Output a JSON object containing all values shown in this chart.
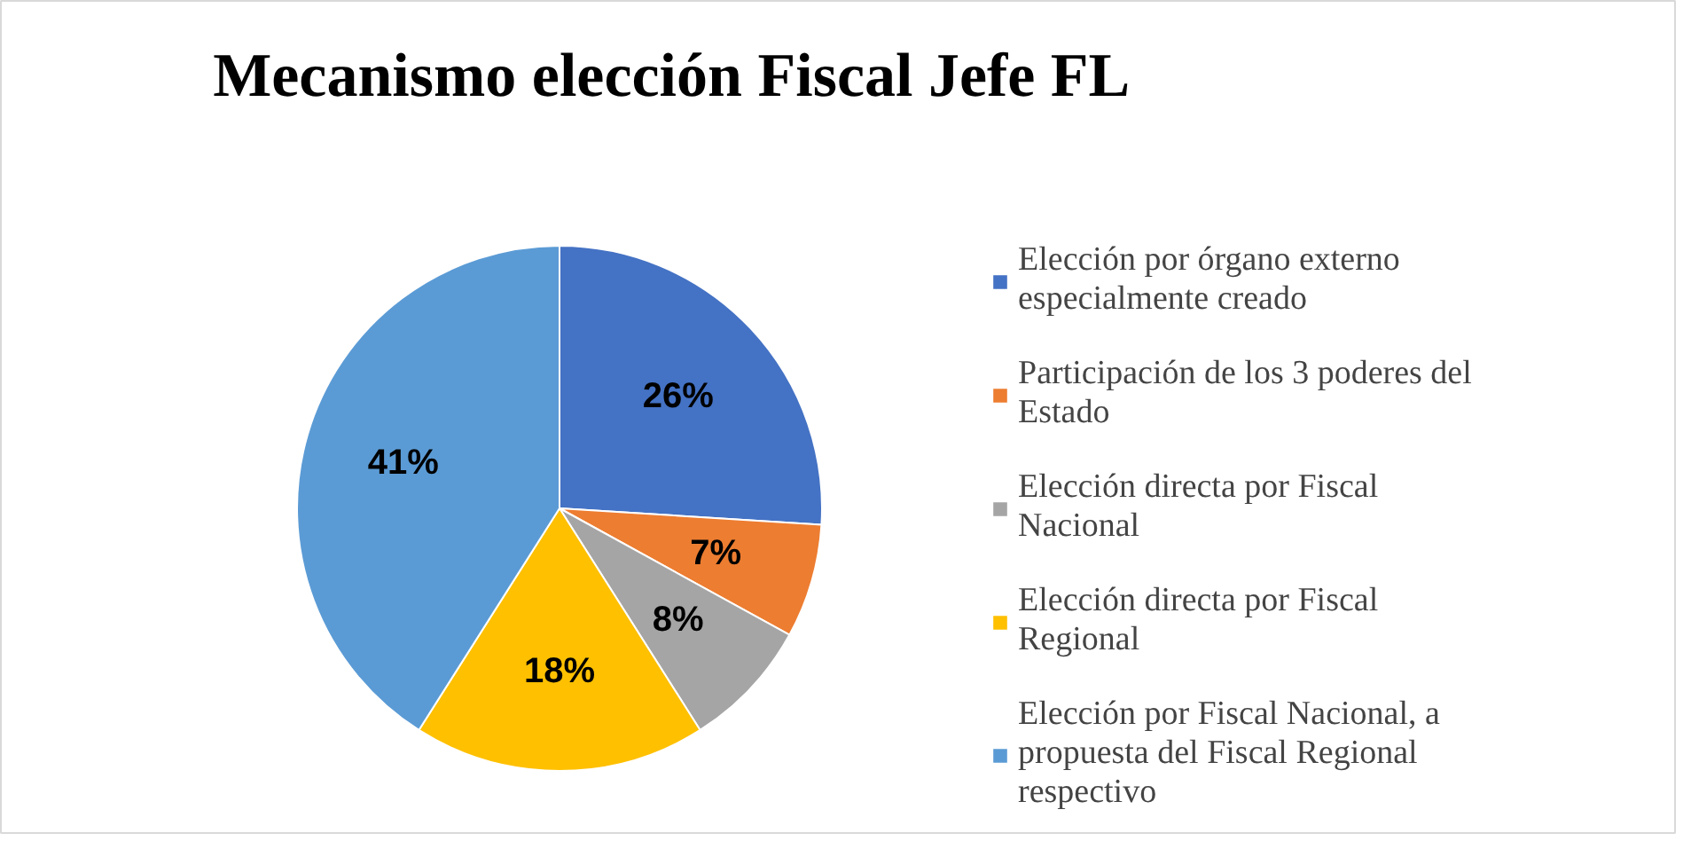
{
  "chart_data": {
    "type": "pie",
    "title": "Mecanismo elección  Fiscal Jefe FL",
    "categories": [
      "Elección por órgano externo especialmente creado",
      "Participación de los 3 poderes del Estado",
      "Elección directa por Fiscal Nacional",
      "Elección directa por Fiscal Regional",
      "Elección por Fiscal Nacional, a propuesta del Fiscal Regional respectivo"
    ],
    "values": [
      26,
      7,
      8,
      18,
      41
    ],
    "colors": [
      "#4472c4",
      "#ed7d31",
      "#a5a5a5",
      "#ffc000",
      "#5b9bd5"
    ],
    "value_labels": [
      "26%",
      "7%",
      "8%",
      "18%",
      "41%"
    ],
    "legend": "right"
  }
}
